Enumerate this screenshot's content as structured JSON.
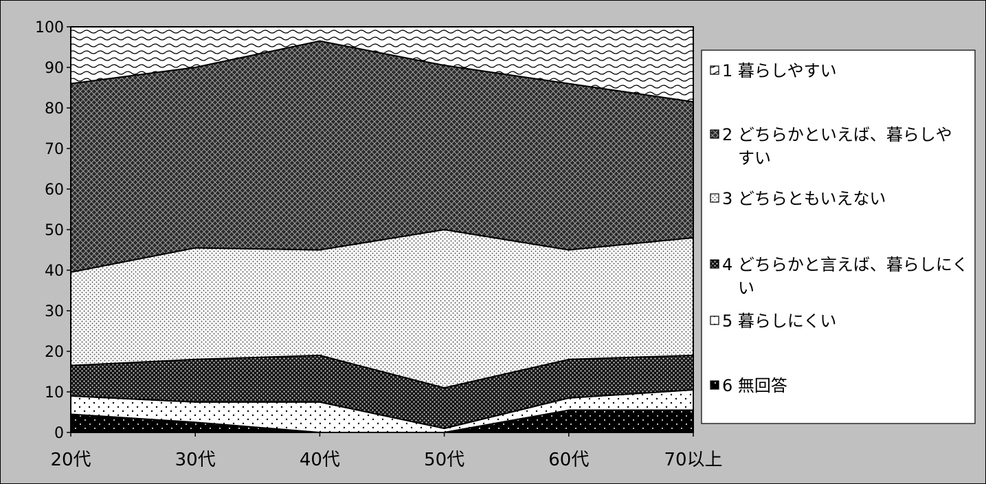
{
  "chart_data": {
    "type": "area",
    "stacked": true,
    "title": "",
    "xlabel": "",
    "ylabel": "",
    "ylim": [
      0,
      100
    ],
    "yticks": [
      0,
      10,
      20,
      30,
      40,
      50,
      60,
      70,
      80,
      90,
      100
    ],
    "categories": [
      "20代",
      "30代",
      "40代",
      "50代",
      "60代",
      "70以上"
    ],
    "grid": false,
    "legend_position": "right",
    "series": [
      {
        "name": "6 無回答",
        "values": [
          4.5,
          2.5,
          0,
          0,
          5.5,
          5.5
        ]
      },
      {
        "name": "5 暮らしにくい",
        "values": [
          4.5,
          5,
          7.5,
          1,
          3,
          5
        ]
      },
      {
        "name": "4 どちらかと言えば、暮らしにくい",
        "values": [
          7.5,
          10.5,
          11.5,
          10,
          9.5,
          8.5
        ]
      },
      {
        "name": "3 どちらともいえない",
        "values": [
          23,
          27.5,
          26,
          39,
          27,
          29
        ]
      },
      {
        "name": "2 どちらかといえば、暮らしやすい",
        "values": [
          46.5,
          44.5,
          51.5,
          40.5,
          41,
          33.5
        ]
      },
      {
        "name": "1 暮らしやすい",
        "values": [
          14,
          10,
          3.5,
          9.5,
          14,
          18.5
        ]
      }
    ],
    "legend_order": [
      "1 暮らしやすい",
      "2 どちらかといえば、暮らしやすい",
      "3 どちらともいえない",
      "4 どちらかと言えば、暮らしにくい",
      "5 暮らしにくい",
      "6 無回答"
    ],
    "legend_lines": [
      [
        "1 暮らしやすい"
      ],
      [
        "2 どちらかといえば、暮らしや",
        "すい"
      ],
      [
        "3 どちらともいえない"
      ],
      [
        "4 どちらかと言えば、暮らしにく",
        "い"
      ],
      [
        "5 暮らしにくい"
      ],
      [
        "6 無回答"
      ]
    ]
  }
}
